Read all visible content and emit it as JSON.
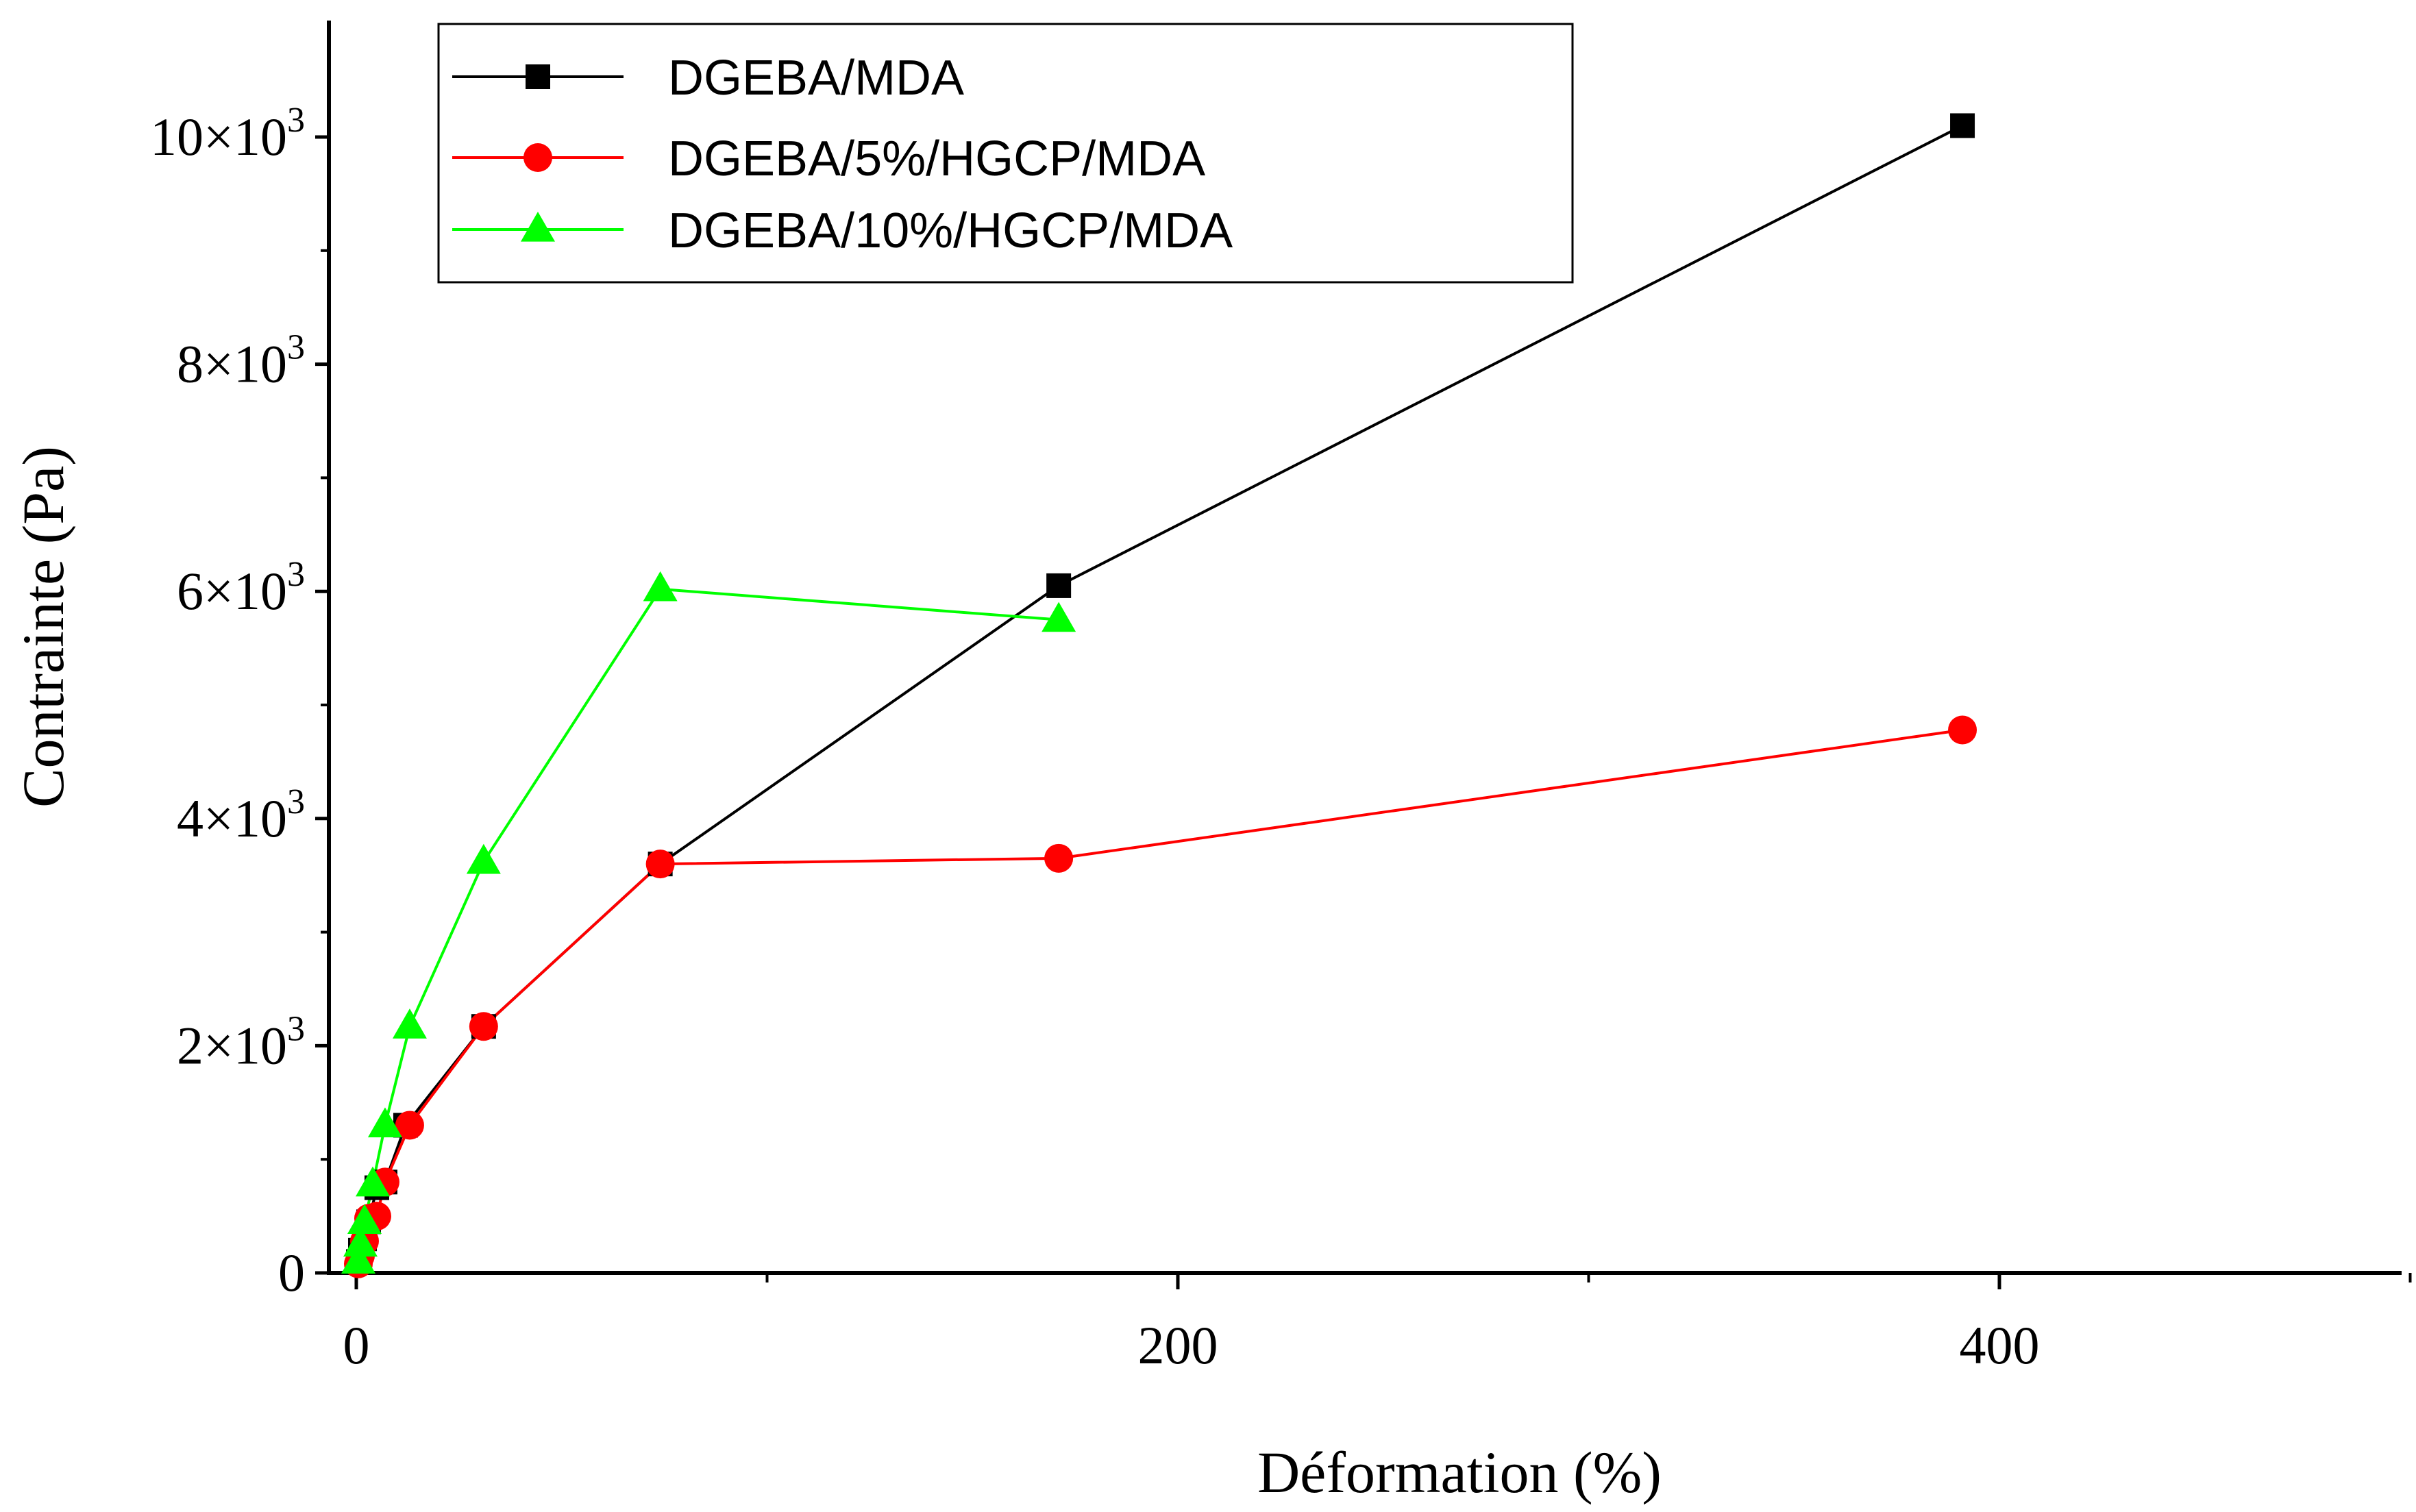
{
  "chart_data": {
    "type": "line",
    "title": "",
    "xlabel": "Déformation (%)",
    "ylabel": "Contrainte (Pa)",
    "xlim": [
      -3,
      500
    ],
    "ylim": [
      0,
      11000
    ],
    "grid": false,
    "legend_position": "top-left",
    "x_ticks": [
      {
        "value": 0,
        "label": "0"
      },
      {
        "value": 200,
        "label": "200"
      },
      {
        "value": 400,
        "label": "400"
      }
    ],
    "x_minor_ticks": [
      100,
      300,
      500
    ],
    "y_ticks": [
      {
        "value": 0,
        "mantissa": "0",
        "exp": ""
      },
      {
        "value": 2000,
        "mantissa": "2×10",
        "exp": "3"
      },
      {
        "value": 4000,
        "mantissa": "4×10",
        "exp": "3"
      },
      {
        "value": 6000,
        "mantissa": "6×10",
        "exp": "3"
      },
      {
        "value": 8000,
        "mantissa": "8×10",
        "exp": "3"
      },
      {
        "value": 10000,
        "mantissa": "10×10",
        "exp": "3"
      }
    ],
    "y_minor_ticks": [
      1000,
      3000,
      5000,
      7000,
      9000
    ],
    "series": [
      {
        "name": "DGEBA/MDA",
        "color": "#000000",
        "marker": "square",
        "x": [
          0.5,
          1,
          2,
          3,
          5,
          7,
          12,
          31,
          74,
          171,
          391
        ],
        "y": [
          100,
          200,
          300,
          450,
          750,
          800,
          1300,
          2170,
          3600,
          6050,
          10100
        ]
      },
      {
        "name": "DGEBA/5%/HGCP/MDA",
        "color": "#ff0000",
        "marker": "circle",
        "x": [
          0.5,
          1,
          2,
          3,
          5,
          7,
          13,
          31,
          74,
          171,
          391
        ],
        "y": [
          80,
          150,
          280,
          480,
          500,
          800,
          1300,
          2170,
          3600,
          3650,
          4780
        ]
      },
      {
        "name": "DGEBA/10%/HGCP/MDA",
        "color": "#00ff00",
        "marker": "triangle",
        "x": [
          0.5,
          1,
          2,
          4,
          7,
          13,
          31,
          74,
          171
        ],
        "y": [
          100,
          250,
          450,
          780,
          1300,
          2170,
          3620,
          6020,
          5750
        ]
      }
    ]
  }
}
